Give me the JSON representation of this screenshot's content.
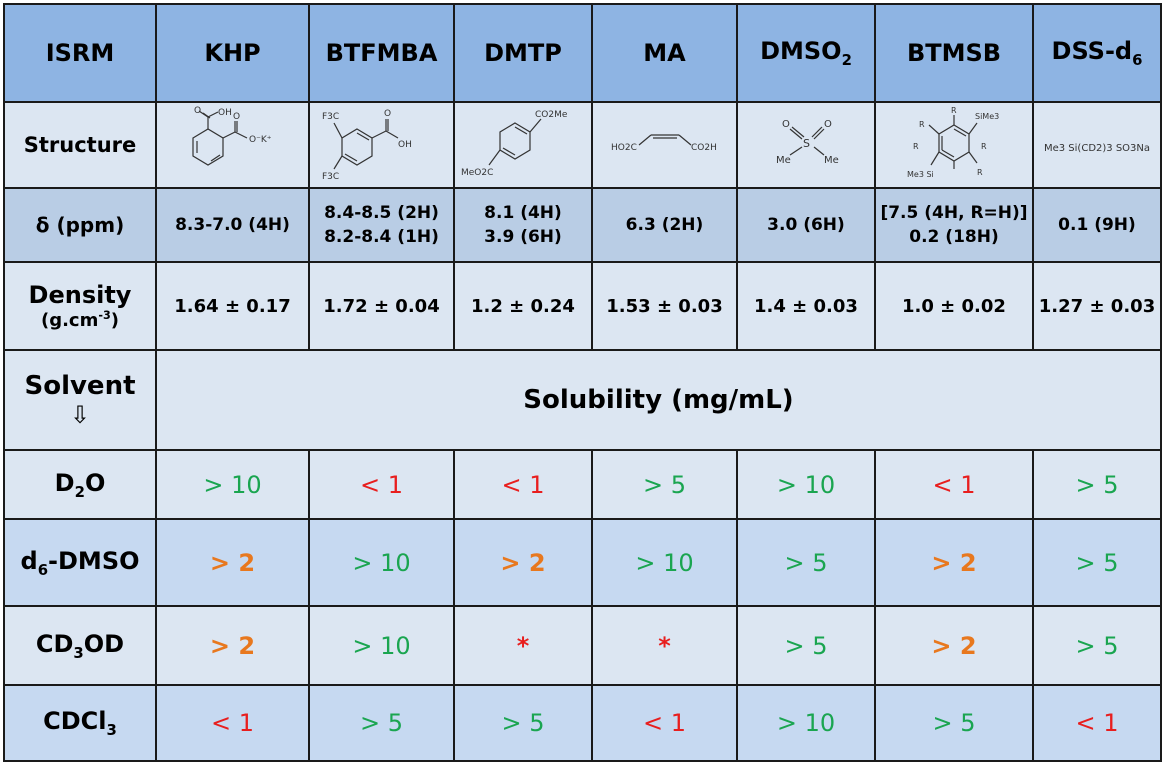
{
  "header": {
    "corner": "ISRM",
    "compounds": [
      "KHP",
      "BTFMBA",
      "DMTP",
      "MA",
      "DMSO",
      "BTMSB",
      "DSS-d"
    ],
    "dmso2_sub": "2",
    "dss_sub": "6"
  },
  "structure": {
    "label": "Structure",
    "khp": {
      "oh": "OH",
      "ok": "O⁻K⁺"
    },
    "btfmba": {
      "f3c_top": "F3C",
      "f3c_bottom": "F3C",
      "oh": "OH"
    },
    "dmtp": {
      "top": "CO2Me",
      "bottom": "MeO2C"
    },
    "ma": {
      "left": "HO2C",
      "right": "CO2H"
    },
    "dmso2": {
      "me_left": "Me",
      "me_right": "Me"
    },
    "btmsb": {
      "r": "R",
      "sime3": "SiMe3",
      "me3si": "Me3 Si"
    },
    "dss": {
      "formula": "Me3 Si(CD2)3 SO3Na"
    }
  },
  "shift": {
    "label": "δ (ppm)",
    "values": [
      [
        "8.3-7.0 (4H)"
      ],
      [
        "8.4-8.5 (2H)",
        "8.2-8.4 (1H)"
      ],
      [
        "8.1 (4H)",
        "3.9 (6H)"
      ],
      [
        "6.3 (2H)"
      ],
      [
        "3.0 (6H)"
      ],
      [
        "[7.5 (4H, R=H)]",
        "0.2 (18H)"
      ],
      [
        "0.1 (9H)"
      ]
    ]
  },
  "density": {
    "label": "Density",
    "unit": "(g.cm",
    "unit_sup": "-3",
    "unit_close": ")",
    "values": [
      "1.64 ± 0.17",
      "1.72 ± 0.04",
      "1.2 ± 0.24",
      "1.53 ± 0.03",
      "1.4 ± 0.03",
      "1.0 ± 0.02",
      "1.27 ± 0.03"
    ]
  },
  "solvent_header": {
    "label": "Solvent",
    "arrow": "⇩",
    "solubility_title": "Solubility (mg/mL)"
  },
  "solvents": [
    {
      "parts": [
        "D",
        "2",
        "O"
      ],
      "cells": [
        {
          "text": "> 10",
          "color": "green"
        },
        {
          "text": "< 1",
          "color": "red"
        },
        {
          "text": "< 1",
          "color": "red"
        },
        {
          "text": "> 5",
          "color": "green"
        },
        {
          "text": "> 10",
          "color": "green"
        },
        {
          "text": "< 1",
          "color": "red"
        },
        {
          "text": "> 5",
          "color": "green"
        }
      ]
    },
    {
      "parts": [
        "d",
        "6",
        "-DMSO"
      ],
      "cells": [
        {
          "text": "> 2",
          "color": "orange"
        },
        {
          "text": "> 10",
          "color": "green"
        },
        {
          "text": "> 2",
          "color": "orange"
        },
        {
          "text": "> 10",
          "color": "green"
        },
        {
          "text": "> 5",
          "color": "green"
        },
        {
          "text": "> 2",
          "color": "orange"
        },
        {
          "text": "> 5",
          "color": "green"
        }
      ]
    },
    {
      "parts": [
        "CD",
        "3",
        "OD"
      ],
      "cells": [
        {
          "text": "> 2",
          "color": "orange"
        },
        {
          "text": "> 10",
          "color": "green"
        },
        {
          "text": "*",
          "color": "star"
        },
        {
          "text": "*",
          "color": "star"
        },
        {
          "text": "> 5",
          "color": "green"
        },
        {
          "text": "> 2",
          "color": "orange"
        },
        {
          "text": "> 5",
          "color": "green"
        }
      ]
    },
    {
      "parts": [
        "CDCl",
        "3",
        ""
      ],
      "cells": [
        {
          "text": "< 1",
          "color": "red"
        },
        {
          "text": "> 5",
          "color": "green"
        },
        {
          "text": "> 5",
          "color": "green"
        },
        {
          "text": "< 1",
          "color": "red"
        },
        {
          "text": "> 10",
          "color": "green"
        },
        {
          "text": "> 5",
          "color": "green"
        },
        {
          "text": "< 1",
          "color": "red"
        }
      ]
    }
  ],
  "colors": {
    "header": "#8eb4e3",
    "light": "#dce6f2",
    "mid": "#b9cde5",
    "green": "#1aa550",
    "red": "#e81e1e",
    "orange": "#e8781e"
  }
}
